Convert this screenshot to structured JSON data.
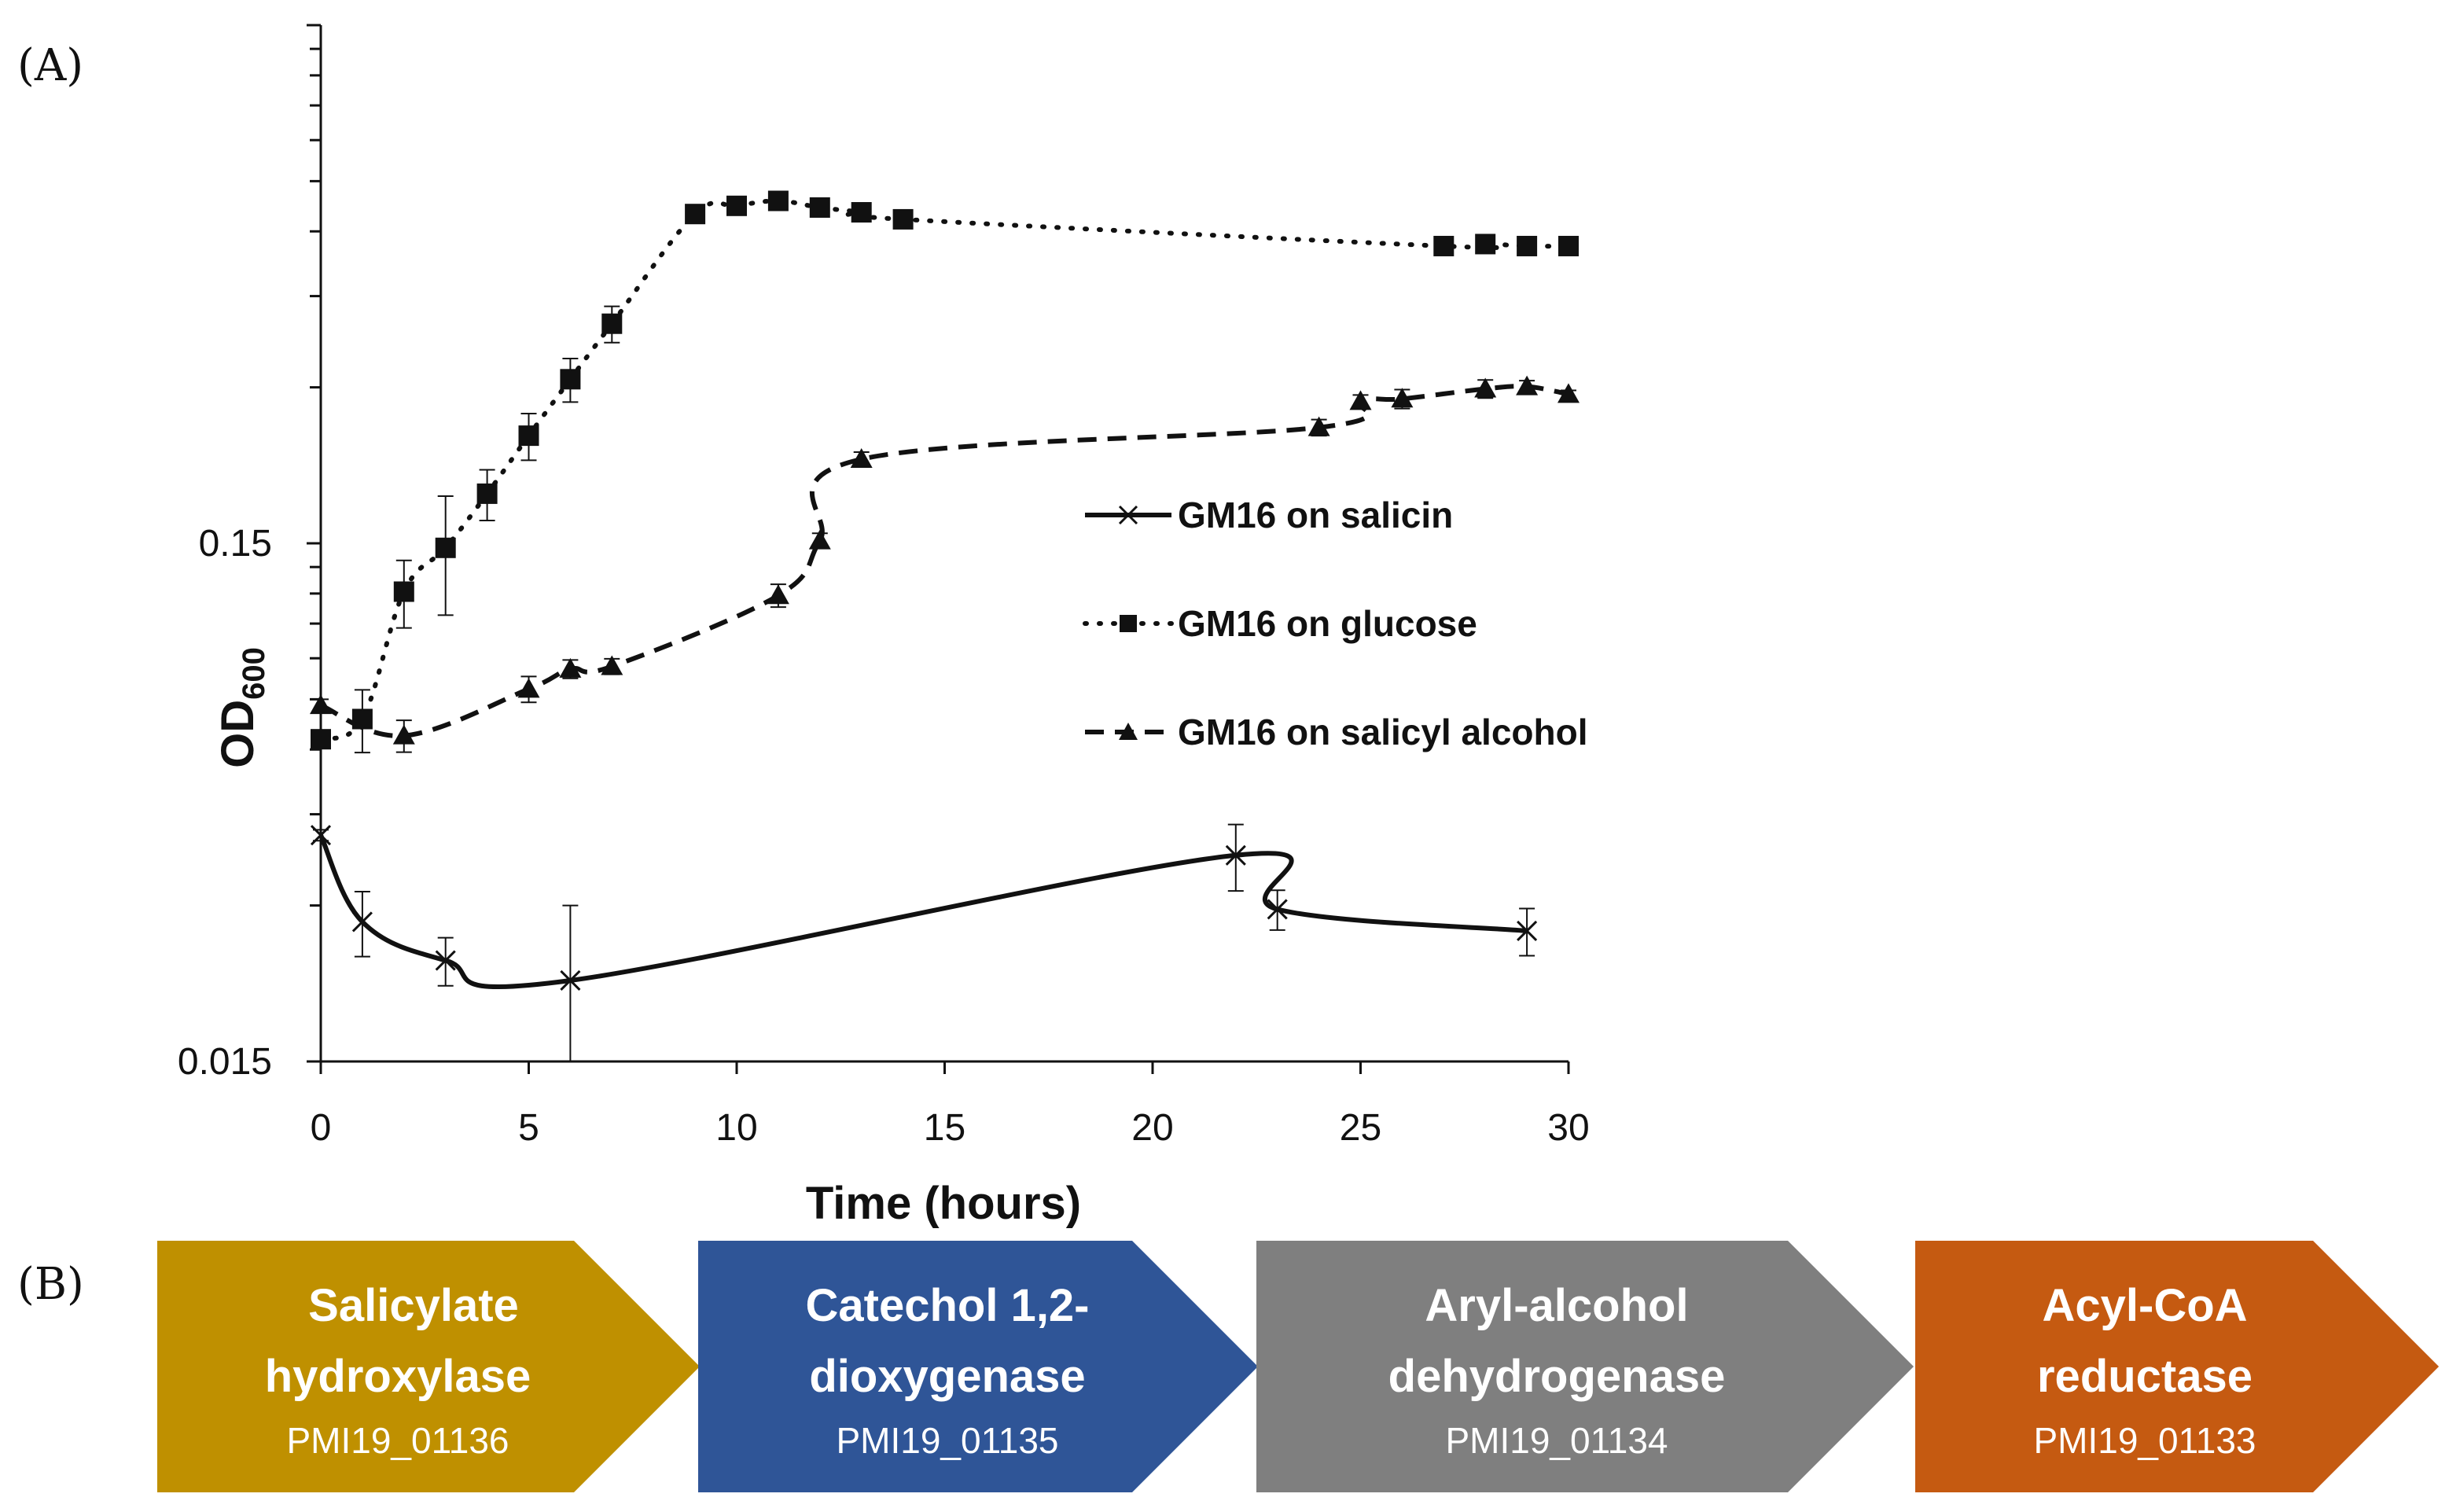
{
  "panels": {
    "a": "(A)",
    "b": "(B)"
  },
  "chart_data": {
    "type": "line",
    "yscale": "log",
    "xlabel": "Time (hours)",
    "ylabel_main": "OD",
    "ylabel_sub": "600",
    "xlim": [
      0,
      30
    ],
    "xticks": [
      0,
      5,
      10,
      15,
      20,
      25,
      30
    ],
    "xtick_labels": [
      "0",
      "5",
      "10",
      "15",
      "20",
      "25",
      "30"
    ],
    "ylim": [
      0.015,
      1.5
    ],
    "yticks": [
      0.015,
      0.15
    ],
    "ytick_labels": [
      "0.015",
      "0.15"
    ],
    "legend_position": "center-right",
    "series": [
      {
        "name": "GM16 on salicin",
        "style": "solid",
        "marker": "x",
        "x": [
          0,
          1,
          3,
          6,
          22,
          23,
          29
        ],
        "y": [
          0.041,
          0.0279,
          0.0235,
          0.0215,
          0.0375,
          0.0295,
          0.0268
        ],
        "err": [
          0.001,
          0.004,
          0.0025,
          0.0085,
          0.0055,
          0.0026,
          0.0028
        ]
      },
      {
        "name": "GM16 on glucose",
        "style": "dotted",
        "marker": "square",
        "x": [
          0,
          1,
          2,
          3,
          4,
          5,
          6,
          7,
          9,
          10,
          11,
          12,
          13,
          14,
          27,
          28,
          29,
          30
        ],
        "y": [
          0.0628,
          0.0687,
          0.121,
          0.147,
          0.187,
          0.242,
          0.311,
          0.398,
          0.648,
          0.672,
          0.687,
          0.667,
          0.653,
          0.633,
          0.562,
          0.567,
          0.562,
          0.562
        ],
        "err": [
          0.002,
          0.0095,
          0.018,
          0.038,
          0.021,
          0.025,
          0.03,
          0.032,
          0.01,
          0.008,
          0.012,
          0.01,
          0.01,
          0.008,
          0.008,
          0.008,
          0.008,
          0.008
        ]
      },
      {
        "name": "GM16 on salicyl alcohol",
        "style": "dashed",
        "marker": "triangle",
        "x": [
          0,
          2,
          5,
          6,
          7,
          11,
          12,
          13,
          24,
          25,
          26,
          28,
          29,
          30
        ],
        "y": [
          0.073,
          0.0638,
          0.0785,
          0.0858,
          0.0868,
          0.119,
          0.1518,
          0.218,
          0.251,
          0.282,
          0.285,
          0.298,
          0.301,
          0.291
        ],
        "err": [
          0.002,
          0.0045,
          0.0045,
          0.0035,
          0.003,
          0.006,
          0.005,
          0.007,
          0.009,
          0.008,
          0.012,
          0.012,
          0.008,
          0.005
        ]
      }
    ]
  },
  "pathway": {
    "steps": [
      {
        "line1": "Salicylate",
        "line2": "hydroxylase",
        "gene_id": "PMI19_01136",
        "color": "#bf9000"
      },
      {
        "line1": "Catechol 1,2-",
        "line2": "dioxygenase",
        "gene_id": "PMI19_01135",
        "color": "#2f5597"
      },
      {
        "line1": "Aryl-alcohol",
        "line2": "dehydrogenase",
        "gene_id": "PMI19_01134",
        "color": "#7f7f7f"
      },
      {
        "line1": "Acyl-CoA",
        "line2": "reductase",
        "gene_id": "PMI19_01133",
        "color": "#c55a11"
      }
    ]
  }
}
